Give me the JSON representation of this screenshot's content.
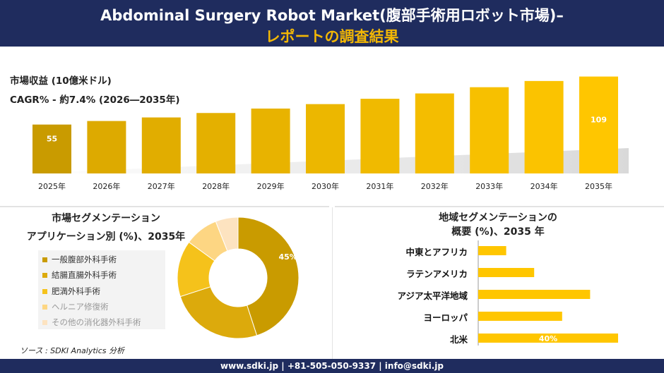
{
  "header": {
    "title_line1": "Abdominal Surgery Robot Market(腹部手術用ロボット市場)–",
    "title_line2": "レポートの調査結果"
  },
  "revenue": {
    "label": "市場収益 (10億米ドル)",
    "cagr": "CAGR% - 約7.4% (2026―2035年)"
  },
  "segment": {
    "title_line1": "市場セグメンテーション",
    "title_line2": "アプリケーション別 (%)、2035年",
    "legend": [
      "一般腹部外科手術",
      "結腸直腸外科手術",
      "肥満外科手術",
      "ヘルニア修復術",
      "その他の消化器外科手術"
    ]
  },
  "region": {
    "title_line1": "地域セグメンテーションの",
    "title_line2": "概要 (%)、2035 年",
    "labels": [
      "中東とアフリカ",
      "ラテンアメリカ",
      "アジア太平洋地域",
      "ヨーロッパ",
      "北米"
    ]
  },
  "source": "ソース : SDKI Analytics 分析",
  "footer": "www.sdki.jp | +81-505-050-9337 | info@sdki.jp",
  "colors": {
    "header_bg": "#1f2c5e",
    "title_accent": "#f2b705",
    "bar_dark": "#c99b00",
    "bar_light": "#ffc600"
  },
  "chart_data": [
    {
      "type": "bar",
      "title": "市場収益 (10億米ドル)",
      "categories": [
        "2025年",
        "2026年",
        "2027年",
        "2028年",
        "2029年",
        "2030年",
        "2031年",
        "2032年",
        "2033年",
        "2034年",
        "2035年"
      ],
      "values": [
        55,
        59,
        63,
        68,
        73,
        78,
        84,
        90,
        97,
        104,
        109
      ],
      "data_labels": {
        "0": "55",
        "10": "109"
      },
      "ylim": [
        0,
        115
      ],
      "grid": false
    },
    {
      "type": "pie",
      "style": "donut",
      "labels": [
        "一般腹部外科手術",
        "結腸直腸外科手術",
        "肥満外科手術",
        "ヘルニア修復術",
        "その他の消化器外科手術"
      ],
      "values": [
        45,
        25,
        15,
        9,
        6
      ],
      "data_labels": {
        "0": "45%"
      },
      "colors": [
        "#c99b00",
        "#dcaa0c",
        "#f5c21b",
        "#fdd683",
        "#fde3c0"
      ]
    },
    {
      "type": "bar",
      "orientation": "horizontal",
      "categories": [
        "中東とアフリカ",
        "ラテンアメリカ",
        "アジア太平洋地域",
        "ヨーロッパ",
        "北米"
      ],
      "values": [
        8,
        16,
        32,
        24,
        40
      ],
      "data_labels": {
        "4": "40%"
      },
      "xlim": [
        0,
        40
      ],
      "grid": false
    }
  ]
}
